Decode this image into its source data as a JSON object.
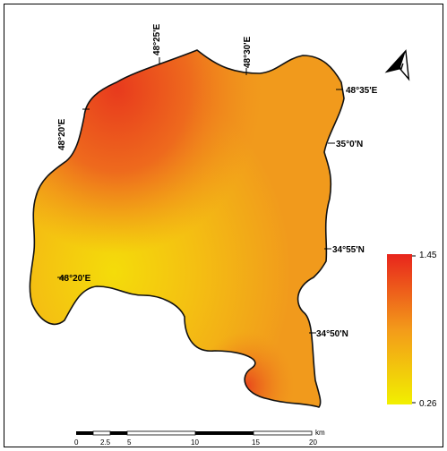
{
  "map": {
    "labels": {
      "lon_48_25": "48°25'E",
      "lon_48_30": "48°30'E",
      "lon_48_35": "48°35'E",
      "lon_48_20_top": "48°20'E",
      "lon_48_20_left": "48°20'E",
      "lat_35_0": "35°0'N",
      "lat_34_55": "34°55'N",
      "lat_34_50": "34°50'N"
    },
    "north_arrow": "N",
    "legend": {
      "max": "1.45",
      "min": "0.26",
      "color_high": "#e8251c",
      "color_mid": "#f39a1a",
      "color_low": "#f2f000"
    },
    "scale_bar": {
      "unit": "km",
      "ticks": [
        "0",
        "2.5",
        "5",
        "10",
        "15",
        "20"
      ]
    }
  }
}
